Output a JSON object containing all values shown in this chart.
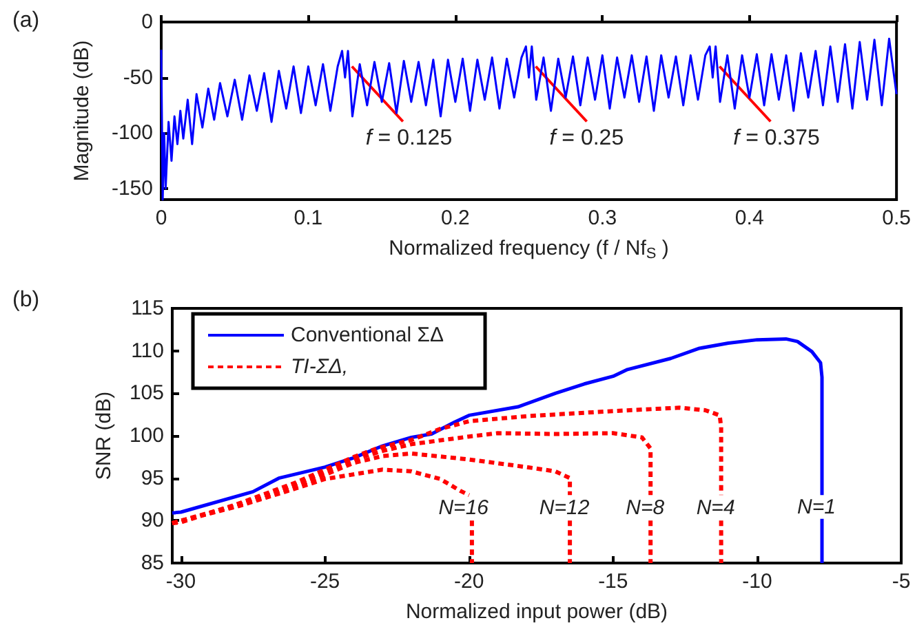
{
  "chart_data": [
    {
      "type": "line",
      "title": "(a)",
      "xlabel": "Normalized frequency (f / Nf$_{S}$ )",
      "ylabel": "Magnitude (dB)",
      "xlim": [
        0,
        0.5
      ],
      "ylim": [
        -160,
        0
      ],
      "xticks": [
        0,
        0.1,
        0.2,
        0.3,
        0.4,
        0.5
      ],
      "yticks": [
        -150,
        -100,
        -50,
        0
      ],
      "grid": false,
      "series": [
        {
          "color": "#0000ff",
          "line_style": "solid",
          "x": [
            0,
            0.001,
            0.002,
            0.003,
            0.005,
            0.007,
            0.009,
            0.011,
            0.013,
            0.015,
            0.018,
            0.021,
            0.024,
            0.028,
            0.032,
            0.036,
            0.04,
            0.045,
            0.05,
            0.055,
            0.06,
            0.065,
            0.07,
            0.075,
            0.08,
            0.085,
            0.09,
            0.095,
            0.1,
            0.105,
            0.11,
            0.115,
            0.12,
            0.123,
            0.125,
            0.127,
            0.13,
            0.135,
            0.14,
            0.145,
            0.15,
            0.155,
            0.16,
            0.165,
            0.17,
            0.175,
            0.18,
            0.185,
            0.19,
            0.195,
            0.2,
            0.205,
            0.21,
            0.215,
            0.22,
            0.225,
            0.23,
            0.235,
            0.24,
            0.245,
            0.248,
            0.25,
            0.252,
            0.255,
            0.26,
            0.265,
            0.27,
            0.275,
            0.28,
            0.285,
            0.29,
            0.295,
            0.3,
            0.305,
            0.31,
            0.315,
            0.32,
            0.325,
            0.33,
            0.335,
            0.34,
            0.345,
            0.35,
            0.355,
            0.36,
            0.365,
            0.37,
            0.373,
            0.375,
            0.377,
            0.38,
            0.385,
            0.39,
            0.395,
            0.4,
            0.405,
            0.41,
            0.415,
            0.42,
            0.425,
            0.43,
            0.435,
            0.44,
            0.445,
            0.45,
            0.455,
            0.46,
            0.465,
            0.47,
            0.475,
            0.48,
            0.485,
            0.49,
            0.495,
            0.5
          ],
          "values": [
            -25,
            -160,
            -100,
            -150,
            -90,
            -125,
            -85,
            -110,
            -80,
            -105,
            -70,
            -110,
            -65,
            -95,
            -60,
            -88,
            -55,
            -85,
            -52,
            -88,
            -48,
            -80,
            -46,
            -90,
            -44,
            -78,
            -40,
            -82,
            -40,
            -75,
            -38,
            -80,
            -40,
            -26,
            -50,
            -26,
            -85,
            -38,
            -75,
            -36,
            -72,
            -37,
            -82,
            -35,
            -72,
            -36,
            -75,
            -34,
            -85,
            -34,
            -72,
            -33,
            -80,
            -34,
            -70,
            -32,
            -78,
            -33,
            -68,
            -32,
            -22,
            -50,
            -22,
            -70,
            -32,
            -80,
            -33,
            -68,
            -31,
            -75,
            -32,
            -70,
            -30,
            -78,
            -32,
            -68,
            -30,
            -72,
            -31,
            -80,
            -30,
            -68,
            -31,
            -75,
            -30,
            -70,
            -30,
            -22,
            -50,
            -22,
            -72,
            -30,
            -78,
            -30,
            -68,
            -29,
            -75,
            -29,
            -70,
            -30,
            -80,
            -28,
            -68,
            -26,
            -75,
            -22,
            -72,
            -20,
            -78,
            -18,
            -70,
            -16,
            -75,
            -15,
            -65
          ]
        }
      ],
      "annotations": [
        {
          "text": "f = 0.125",
          "x": 0.125,
          "y": -40
        },
        {
          "text": "f = 0.25",
          "x": 0.25,
          "y": -40
        },
        {
          "text": "f = 0.375",
          "x": 0.375,
          "y": -40
        }
      ]
    },
    {
      "type": "line",
      "title": "(b)",
      "xlabel": "Normalized input power (dB)",
      "ylabel": "SNR (dB)",
      "xlim": [
        -30.3,
        -5
      ],
      "ylim": [
        85,
        115
      ],
      "xticks": [
        -30,
        -25,
        -20,
        -15,
        -10,
        -5
      ],
      "yticks": [
        85,
        90,
        95,
        100,
        105,
        110,
        115
      ],
      "grid": false,
      "legend": "top left",
      "series": [
        {
          "name": "Conventional ΣΔ",
          "color": "#0000ff",
          "line_style": "solid",
          "x": [
            -30.3,
            -30,
            -27.5,
            -26.6,
            -25,
            -24,
            -23,
            -22,
            -21.3,
            -20.5,
            -20,
            -18.3,
            -17,
            -16,
            -15,
            -14.5,
            -13,
            -12,
            -11,
            -10,
            -9,
            -8.6,
            -8.1,
            -7.8,
            -7.75,
            -7.75,
            null,
            -7.75,
            -7.75
          ],
          "values": [
            90.9,
            91,
            93.4,
            95,
            96.3,
            97.4,
            98.8,
            99.8,
            100.2,
            101.6,
            102.4,
            103.4,
            105,
            106.1,
            107,
            107.8,
            109.1,
            110.3,
            110.9,
            111.3,
            111.4,
            111.1,
            109.9,
            108.6,
            106.9,
            93,
            null,
            90.2,
            85
          ]
        },
        {
          "name": "TI-ΣΔ,",
          "color": "#ff0000",
          "line_style": "dashed",
          "x": [
            -30.3,
            -30,
            -28,
            -26,
            -25,
            -24,
            -23.2,
            -22,
            -21,
            -20,
            -18,
            -15,
            -12.7,
            -11.8,
            -11.3,
            -11.25,
            -11.25,
            null,
            -11.25,
            -11.25
          ],
          "values": [
            89.7,
            89.8,
            92,
            94.5,
            96,
            97.5,
            98.5,
            99.5,
            100.8,
            101.7,
            102.3,
            102.9,
            103.3,
            103,
            102.4,
            101,
            93,
            null,
            90,
            85
          ]
        },
        {
          "color": "#ff0000",
          "line_style": "dashed",
          "x": [
            -30.3,
            -28,
            -26,
            -24,
            -23,
            -22,
            -20,
            -19,
            -17,
            -15,
            -14,
            -13.7,
            -13.7,
            null,
            -13.7,
            -13.7
          ],
          "values": [
            89.7,
            91.9,
            94.3,
            97.2,
            98.2,
            99,
            99.9,
            100.3,
            100.2,
            100.3,
            99.8,
            98.5,
            93,
            null,
            90,
            85
          ]
        },
        {
          "color": "#ff0000",
          "line_style": "dashed",
          "x": [
            -30.3,
            -28,
            -26,
            -24,
            -23,
            -22,
            -20,
            -18,
            -17,
            -16.5,
            -16.5,
            null,
            -16.5,
            -16.5
          ],
          "values": [
            89.7,
            91.8,
            94,
            96.8,
            97.6,
            97.9,
            97.2,
            96.3,
            95.8,
            95,
            93,
            null,
            90,
            85
          ]
        },
        {
          "color": "#ff0000",
          "line_style": "dashed",
          "x": [
            -30.3,
            -28,
            -26,
            -25,
            -23,
            -22,
            -21,
            -20.3,
            -20,
            null,
            -19.9,
            -19.9
          ],
          "values": [
            89.7,
            91.7,
            93.8,
            94.9,
            96,
            95.8,
            94.9,
            93.5,
            93,
            null,
            90,
            85
          ]
        }
      ],
      "annotations": [
        "N=16",
        "N=12",
        "N=8",
        "N=4",
        "N=1"
      ]
    }
  ]
}
